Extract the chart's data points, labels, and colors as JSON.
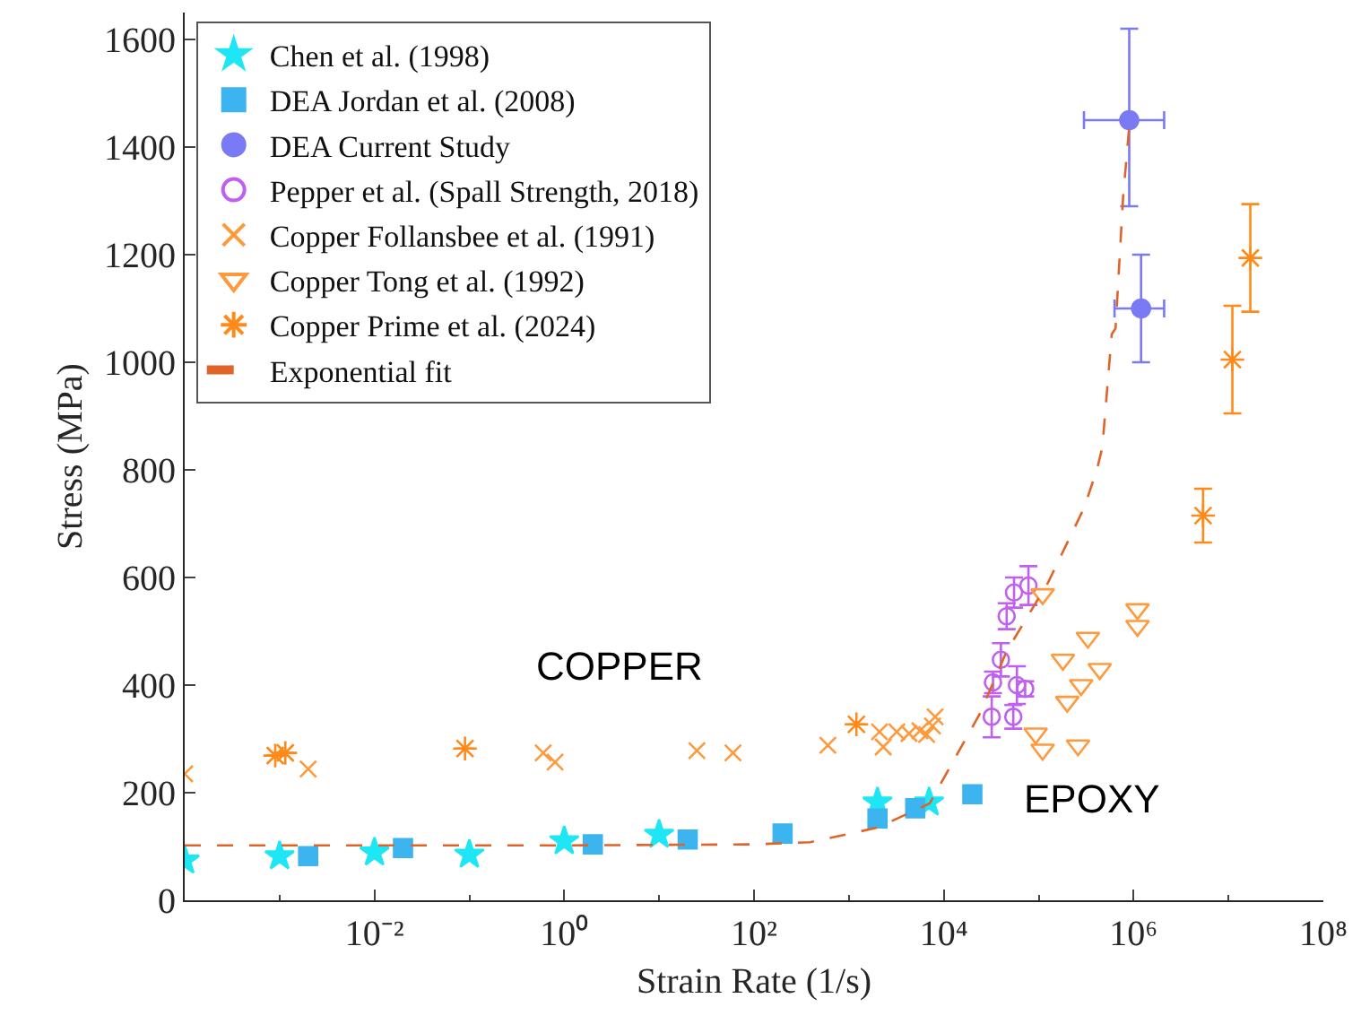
{
  "chart_data": {
    "type": "scatter",
    "xlabel": "Strain Rate (1/s)",
    "ylabel": "Stress (MPa)",
    "log": "x",
    "xlim": [
      0.0001,
      100000000
    ],
    "ylim": [
      0,
      1650
    ],
    "xticks": [
      {
        "value": 0.01,
        "label": "10⁻²"
      },
      {
        "value": 1,
        "label": "10⁰"
      },
      {
        "value": 100,
        "label": "10²"
      },
      {
        "value": 10000,
        "label": "10⁴"
      },
      {
        "value": 1000000,
        "label": "10⁶"
      },
      {
        "value": 100000000,
        "label": "10⁸"
      }
    ],
    "yticks": [
      0,
      200,
      400,
      600,
      800,
      1000,
      1200,
      1400,
      1600
    ],
    "legend": "top left",
    "annotations": [
      "COPPER",
      "EPOXY"
    ],
    "series": [
      {
        "name": "Chen et al. (1998)",
        "color": "#1ee6f5",
        "marker": "star",
        "x": [
          0.0001,
          0.001,
          0.01,
          0.1,
          1,
          10,
          2000,
          7000
        ],
        "values": [
          74,
          82,
          89,
          85,
          110,
          122,
          182,
          182
        ]
      },
      {
        "name": "DEA Jordan et al. (2008)",
        "color": "#3cb4f0",
        "marker": "square",
        "x": [
          0.002,
          0.02,
          2,
          20,
          200,
          2000,
          5000,
          20000
        ],
        "values": [
          82,
          97,
          104,
          113,
          124,
          152,
          171,
          197
        ]
      },
      {
        "name": "DEA Current Study",
        "color": "#7a7af5",
        "marker": "circle",
        "x": [
          900000,
          1200000
        ],
        "values": [
          1450,
          1100
        ],
        "errors": [
          [
            1290,
            1620
          ],
          [
            1000,
            1200
          ]
        ],
        "xerrors": [
          [
            300000,
            2100000
          ],
          [
            630000,
            2100000
          ]
        ]
      },
      {
        "name": "Pepper et al. (Spall Strength, 2018)",
        "color": "#c060f0",
        "marker": "circle",
        "x": [
          32000,
          33000,
          40000,
          46000,
          54000,
          55000,
          59000,
          72000,
          78000
        ],
        "values": [
          341,
          405,
          447,
          528,
          341,
          572,
          400,
          393,
          585
        ],
        "errors": [
          38,
          20,
          31,
          24,
          22,
          28,
          35,
          14,
          36
        ]
      },
      {
        "name": "Copper Follansbee et al. (1991)",
        "color": "#ff9a3c",
        "marker": "cross",
        "x": [
          0.0001,
          0.002,
          0.6,
          0.8,
          25,
          60,
          600,
          2100,
          2300,
          3200,
          4300,
          5600,
          6600,
          7600,
          8100
        ],
        "values": [
          235,
          244,
          274,
          257,
          278,
          274,
          288,
          313,
          285,
          313,
          310,
          315,
          308,
          324,
          341
        ]
      },
      {
        "name": "Copper Tong et al. (1992)",
        "color": "#ff9a3c",
        "marker": "triangle",
        "x": [
          110000,
          180000,
          330000,
          440000,
          280000,
          200000,
          1100000,
          1100000,
          93000,
          110000,
          260000
        ],
        "values": [
          569,
          447,
          488,
          430,
          400,
          369,
          541,
          510,
          310,
          280,
          288
        ]
      },
      {
        "name": "Copper Prime et al. (2024)",
        "color": "#ff8a1a",
        "marker": "cross",
        "x": [
          0.0009,
          0.00115,
          0.09,
          1200,
          5400000,
          11000000,
          17000000
        ],
        "values": [
          269,
          274,
          282,
          327,
          715,
          1005,
          1194
        ],
        "errors": [
          null,
          null,
          null,
          null,
          [
            665,
            765
          ],
          [
            905,
            1105
          ],
          [
            1094,
            1294
          ]
        ]
      },
      {
        "name": "Exponential fit",
        "type": "line",
        "color": "#e0642a",
        "marker": "none",
        "line_style": "dashed",
        "x": [
          0.0001,
          1,
          100,
          390,
          2000,
          7100,
          24000,
          46000,
          126000,
          302000,
          410000,
          468000,
          589000,
          646000,
          776000,
          912000
        ],
        "values": [
          102,
          102,
          104,
          108,
          135,
          180,
          347,
          463,
          591,
          730,
          800,
          841,
          1052,
          1063,
          1307,
          1450
        ]
      }
    ]
  }
}
